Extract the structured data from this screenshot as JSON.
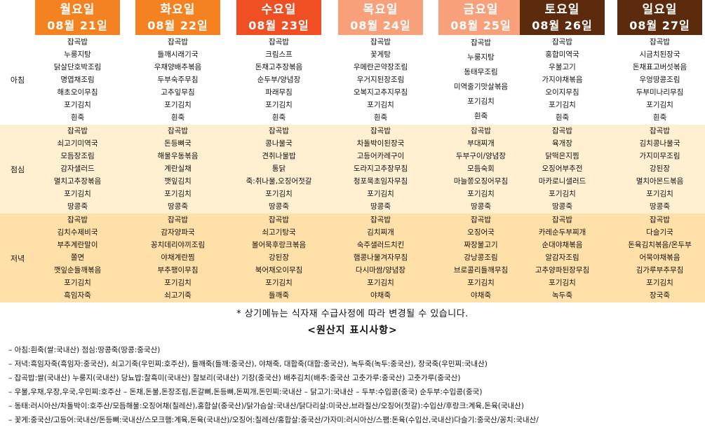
{
  "days": [
    {
      "name": "월요일",
      "date": "08월 21일",
      "color": "#f58220",
      "meals": [
        [
          "잡곡밥",
          "누룽지탕",
          "닭살단호박조림",
          "명엽채조림",
          "해초오이무침",
          "포기김치",
          "흰죽"
        ],
        [
          "잡곡밥",
          "쇠고기미역국",
          "모듬장조림",
          "감자샐러드",
          "멸치고추장볶음",
          "포기김치",
          "땅콩죽"
        ],
        [
          "잡곡밥",
          "김치수제비국",
          "부추계란말이",
          "쫄면",
          "깻잎순들깨볶음",
          "포기김치",
          "흑임자죽"
        ]
      ]
    },
    {
      "name": "화요일",
      "date": "08월 22일",
      "color": "#f58220",
      "meals": [
        [
          "잡곡밥",
          "들깨시래기국",
          "우채양배추볶음",
          "두부숙주무침",
          "고추잎무침",
          "포기김치",
          "흰죽"
        ],
        [
          "잡곡밥",
          "돈등뼈국",
          "해물우동볶음",
          "계란실채",
          "깻잎김치",
          "포기김치",
          "땅콩죽"
        ],
        [
          "잡곡밥",
          "감자양파국",
          "꽁치데리야끼조림",
          "야채계란찜",
          "부추팽이무침",
          "포기김치",
          "쇠고기죽"
        ]
      ]
    },
    {
      "name": "수요일",
      "date": "08월 23일",
      "color": "#f04e23",
      "meals": [
        [
          "잡곡밥",
          "크림스프",
          "돈채고추장볶음",
          "순두부/양념장",
          "파래무침",
          "포기김치",
          "흰죽"
        ],
        [
          "잡곡밥",
          "콩나물국",
          "견취나물밥",
          "통닭",
          "죽:취나물,오징어젓갈",
          "포기김치",
          "땅콩죽"
        ],
        [
          "잡곡밥",
          "쇠고기탕국",
          "볼어묵후랑크볶음",
          "강된장",
          "북어채오이무침",
          "포기김치",
          "들깨죽"
        ]
      ]
    },
    {
      "name": "목요일",
      "date": "08월 24일",
      "color": "#f7a07a",
      "meals": [
        [
          "잡곡밥",
          "꽃게탕",
          "우메란곤약장조림",
          "우거지된장조림",
          "오복지고추지무침",
          "포기김치",
          "흰죽"
        ],
        [
          "잡곡밥",
          "차돌박이된장국",
          "고등어카레구이",
          "도라지고추장무침",
          "청포묵초임자무침",
          "포기김치",
          "땅콩죽"
        ],
        [
          "잡곡밥",
          "김치찌개",
          "숙주샐러드치킨",
          "햄콩나물겨자무침",
          "다시마쌈/양념장",
          "포기김치",
          "야채죽"
        ]
      ]
    },
    {
      "name": "금요일",
      "date": "08월 25일",
      "color": "#f7a07a",
      "meals": [
        [
          "잡곡밥",
          "누룽지탕",
          "동태무조림",
          "미역줄기맛살볶음",
          "포기김치",
          "흰죽"
        ],
        [
          "잡곡밥",
          "부대찌개",
          "두부구이/양념장",
          "모듬숙회",
          "마늘쫑오징어무침",
          "포기김치",
          "땅콩죽"
        ],
        [
          "잡곡밥",
          "오징어국",
          "짜장불고기",
          "강낭콩조림",
          "브로콜리들깨무침",
          "포기김치",
          "야채죽"
        ]
      ]
    },
    {
      "name": "토요일",
      "date": "08월 26일",
      "color": "#5c2a0c",
      "meals": [
        [
          "잡곡밥",
          "홍합미역국",
          "우불고기",
          "가지야채볶음",
          "오이지무침",
          "포기김치",
          "흰죽"
        ],
        [
          "잡곡밥",
          "육개장",
          "닭떡은지찜",
          "오징어부추전",
          "마카로니샐러드",
          "포기김치",
          "땅콩죽"
        ],
        [
          "잡곡밥",
          "카레순두부찌개",
          "순대야채볶음",
          "알감자조림",
          "고추양파된장무침",
          "포기김치",
          "녹두죽"
        ]
      ]
    },
    {
      "name": "일요일",
      "date": "08월 27일",
      "color": "#5c2a0c",
      "meals": [
        [
          "잡곡밥",
          "시금치된장국",
          "돈채표고버섯볶음",
          "우엉땅콩조림",
          "두부미나리무침",
          "포기김치",
          "흰죽"
        ],
        [
          "잡곡밥",
          "김치콩나물국",
          "가지미무조림",
          "강된장",
          "멸치아몬드볶음",
          "포기김치",
          "땅콩죽"
        ],
        [
          "잡곡밥",
          "다슬기국",
          "돈육김치볶음/온두부",
          "어묵야채볶음",
          "김가루부추무침",
          "포기김치",
          "장국죽"
        ]
      ]
    }
  ],
  "meal_labels": [
    "아침",
    "점심",
    "저녁"
  ],
  "meal_colors": [
    "#ffffff",
    "#fff0d2",
    "#ffe0a8"
  ],
  "note": "* 상기메뉴는 식자재 수급사정에 따라 변경될 수 있습니다.",
  "origin_title": "<원산지 표시사항>",
  "origin_lines": [
    "–  아침:흰죽(쌀:국내산)  점심:땅콩죽(땅콩:중국산)",
    "–  저녁:흑임자죽(흑임자:중국산),  쇠고기죽(우민찌:호주산),  들깨죽(들깨:중국산),  야채죽,  대합죽(대합:중국산),  녹두죽(녹두:중국산),  장국죽(우민찌:국내산)",
    "–  잡곡밥:쌀(국내산)  누룽지(국내산)  당뇨밥:찰흑미(국내산)  찰보리(국내산)  기장(중국산)  배추김치(배추:중국산 고춧가루:중국산) 고춧가루(중국산)",
    "–  우불,우채,우장,우국,우민찌:호주산   –  돈채,돈불,돈장조림,돈갈뼈,돈등뼈,돈찌개,돈민찌:국내산   –  닭고기:국내산   –  두부:수입콩(중국) 순두부:수입콩(중국)",
    "–  동태:러시아산/차돌박이:호주산/모듬해물:오징어채(칠레산),홍합살(중국산)/닭가슴살:국내산/닭다리살:미국산,브라질산/오징어(젓갈):수입산/후랑크:계육,돈육(국내산)",
    "–  꽃게:중국산/고등어:국내산/돈등뼈:국내산/스모크햄:계육,돈육(국내산)/오징어:칠레산/홍합살:중국산/가자미:러시아산/스팸:돈육(수입산,국내산)다슬기:중국산/꽁치:국내산/"
  ]
}
